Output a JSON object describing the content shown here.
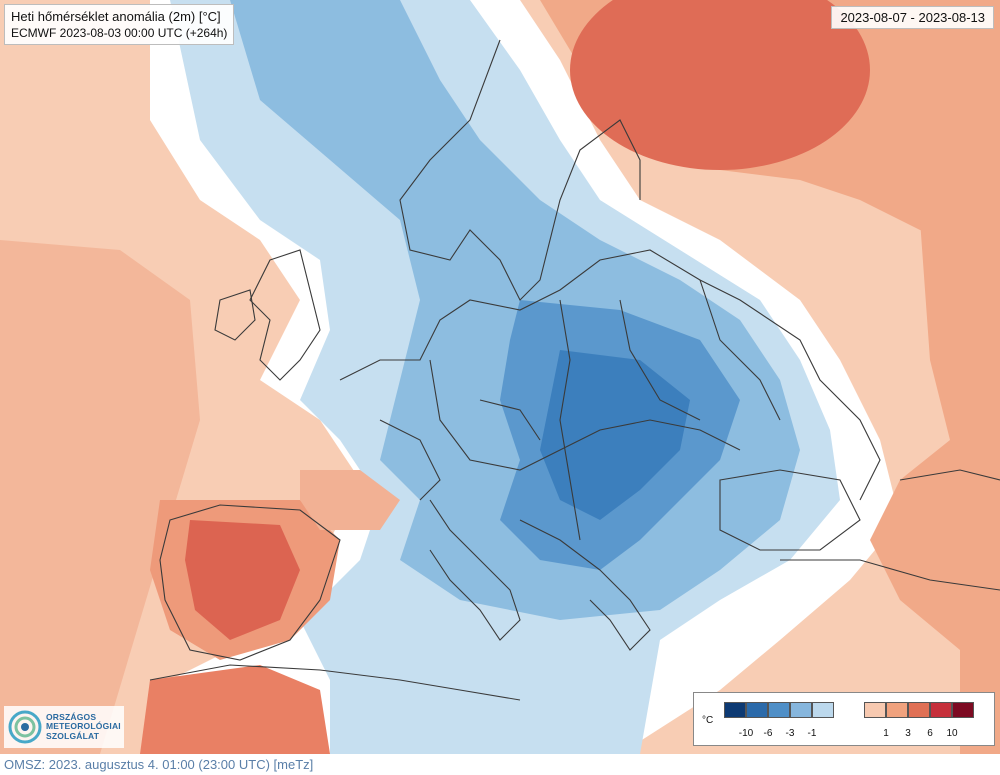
{
  "title": {
    "line1": "Heti hőmérséklet anomália (2m) [°C]",
    "line2": "ECMWF 2023-08-03 00:00 UTC (+264h)"
  },
  "date_range": "2023-08-07 - 2023-08-13",
  "logo": {
    "line1": "ORSZÁGOS",
    "line2": "METEOROLÓGIAI",
    "line3": "SZOLGÁLAT"
  },
  "legend": {
    "unit": "°C",
    "cold_colors": [
      "#0d3a73",
      "#2b6aaa",
      "#4f8fc7",
      "#86b6dd",
      "#bcd8ec"
    ],
    "warm_colors": [
      "#f7c9b0",
      "#f0a27e",
      "#e07055",
      "#c6303b",
      "#7d0a22"
    ],
    "cold_ticks": [
      "-10",
      "-6",
      "-3",
      "-1"
    ],
    "warm_ticks": [
      "1",
      "3",
      "6",
      "10"
    ]
  },
  "footer": "OMSZ: 2023. augusztus 4. 01:00 (23:00 UTC) [meTz]"
}
